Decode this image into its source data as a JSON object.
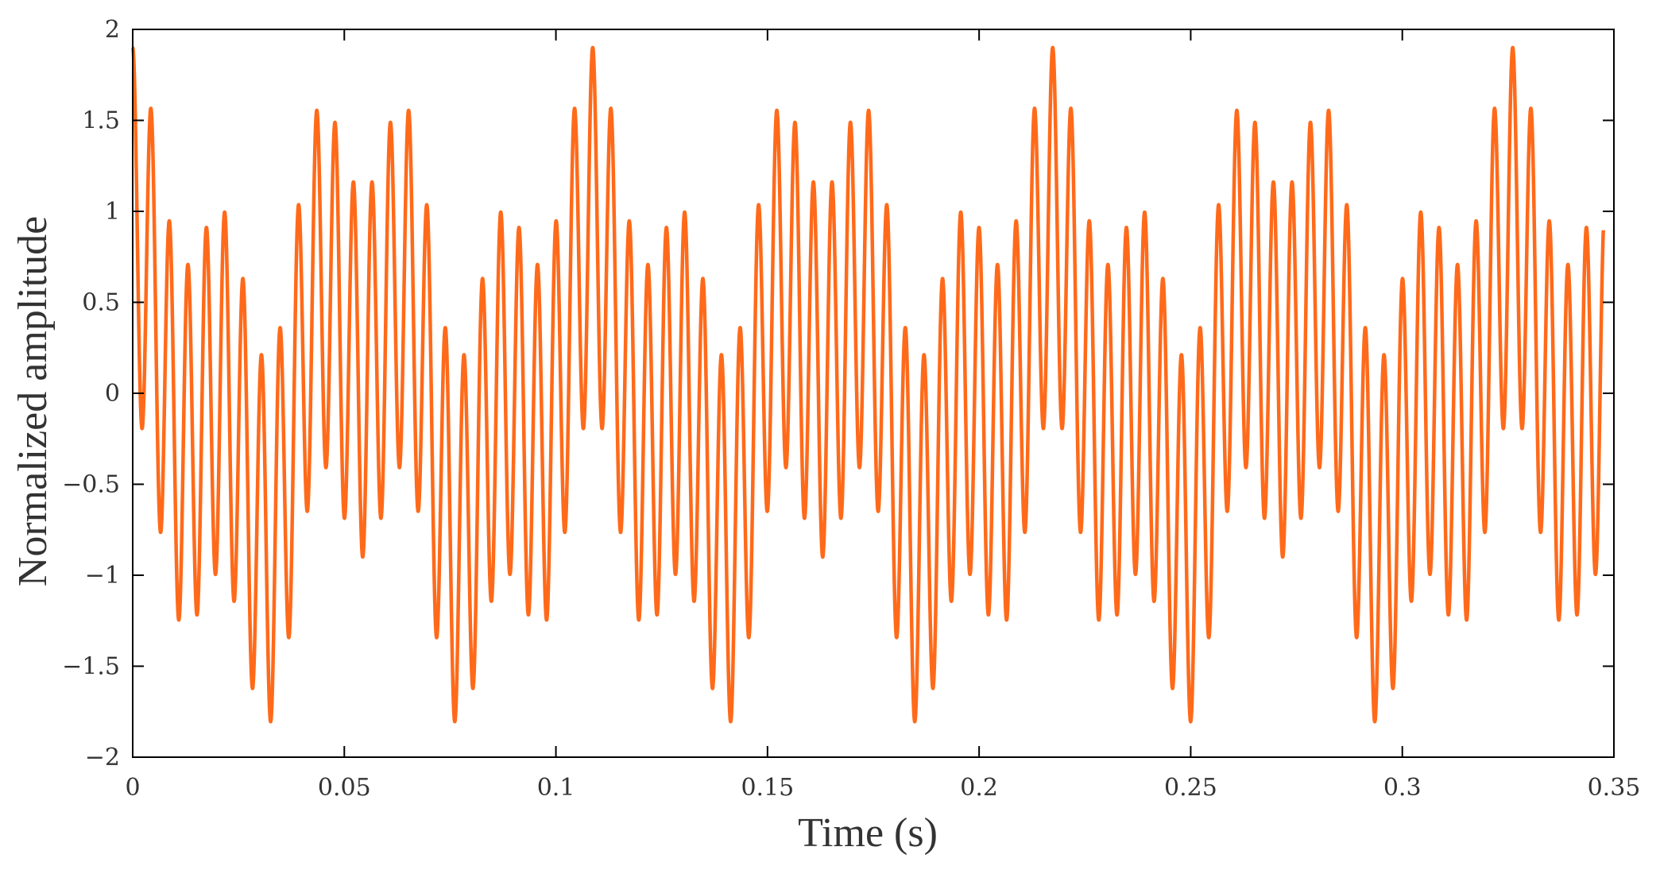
{
  "chart_data": {
    "type": "line",
    "xlabel": "Time (s)",
    "ylabel": "Normalized amplitude",
    "xlim": [
      0,
      0.35
    ],
    "ylim": [
      -2,
      2
    ],
    "x_ticks": [
      0,
      0.05,
      0.1,
      0.15,
      0.2,
      0.25,
      0.3,
      0.35
    ],
    "x_tick_labels": [
      "0",
      "0.05",
      "0.1",
      "0.15",
      "0.2",
      "0.25",
      "0.3",
      "0.35"
    ],
    "y_ticks": [
      2,
      1.5,
      1,
      0.5,
      0,
      -0.5,
      -1,
      -1.5,
      -2
    ],
    "y_tick_labels": [
      "2",
      "1.5",
      "1",
      "0.5",
      "0",
      "−0.5",
      "−1",
      "−1.5",
      "−2"
    ],
    "grid": false,
    "series": [
      {
        "color": "#ff6a1a",
        "signal": {
          "description_of_samples": "sum of sinusoids sampled from t=0 to t=0.3475 s",
          "t_start": 0,
          "t_end": 0.3475,
          "components": [
            {
              "amplitude": 1.0,
              "frequency_hz": 230,
              "phase_rad": 1.5708
            },
            {
              "amplitude": 0.5,
              "frequency_hz": 18.4,
              "phase_rad": 1.5708
            },
            {
              "amplitude": 0.4,
              "frequency_hz": 46,
              "phase_rad": 1.5708
            }
          ]
        }
      }
    ]
  }
}
